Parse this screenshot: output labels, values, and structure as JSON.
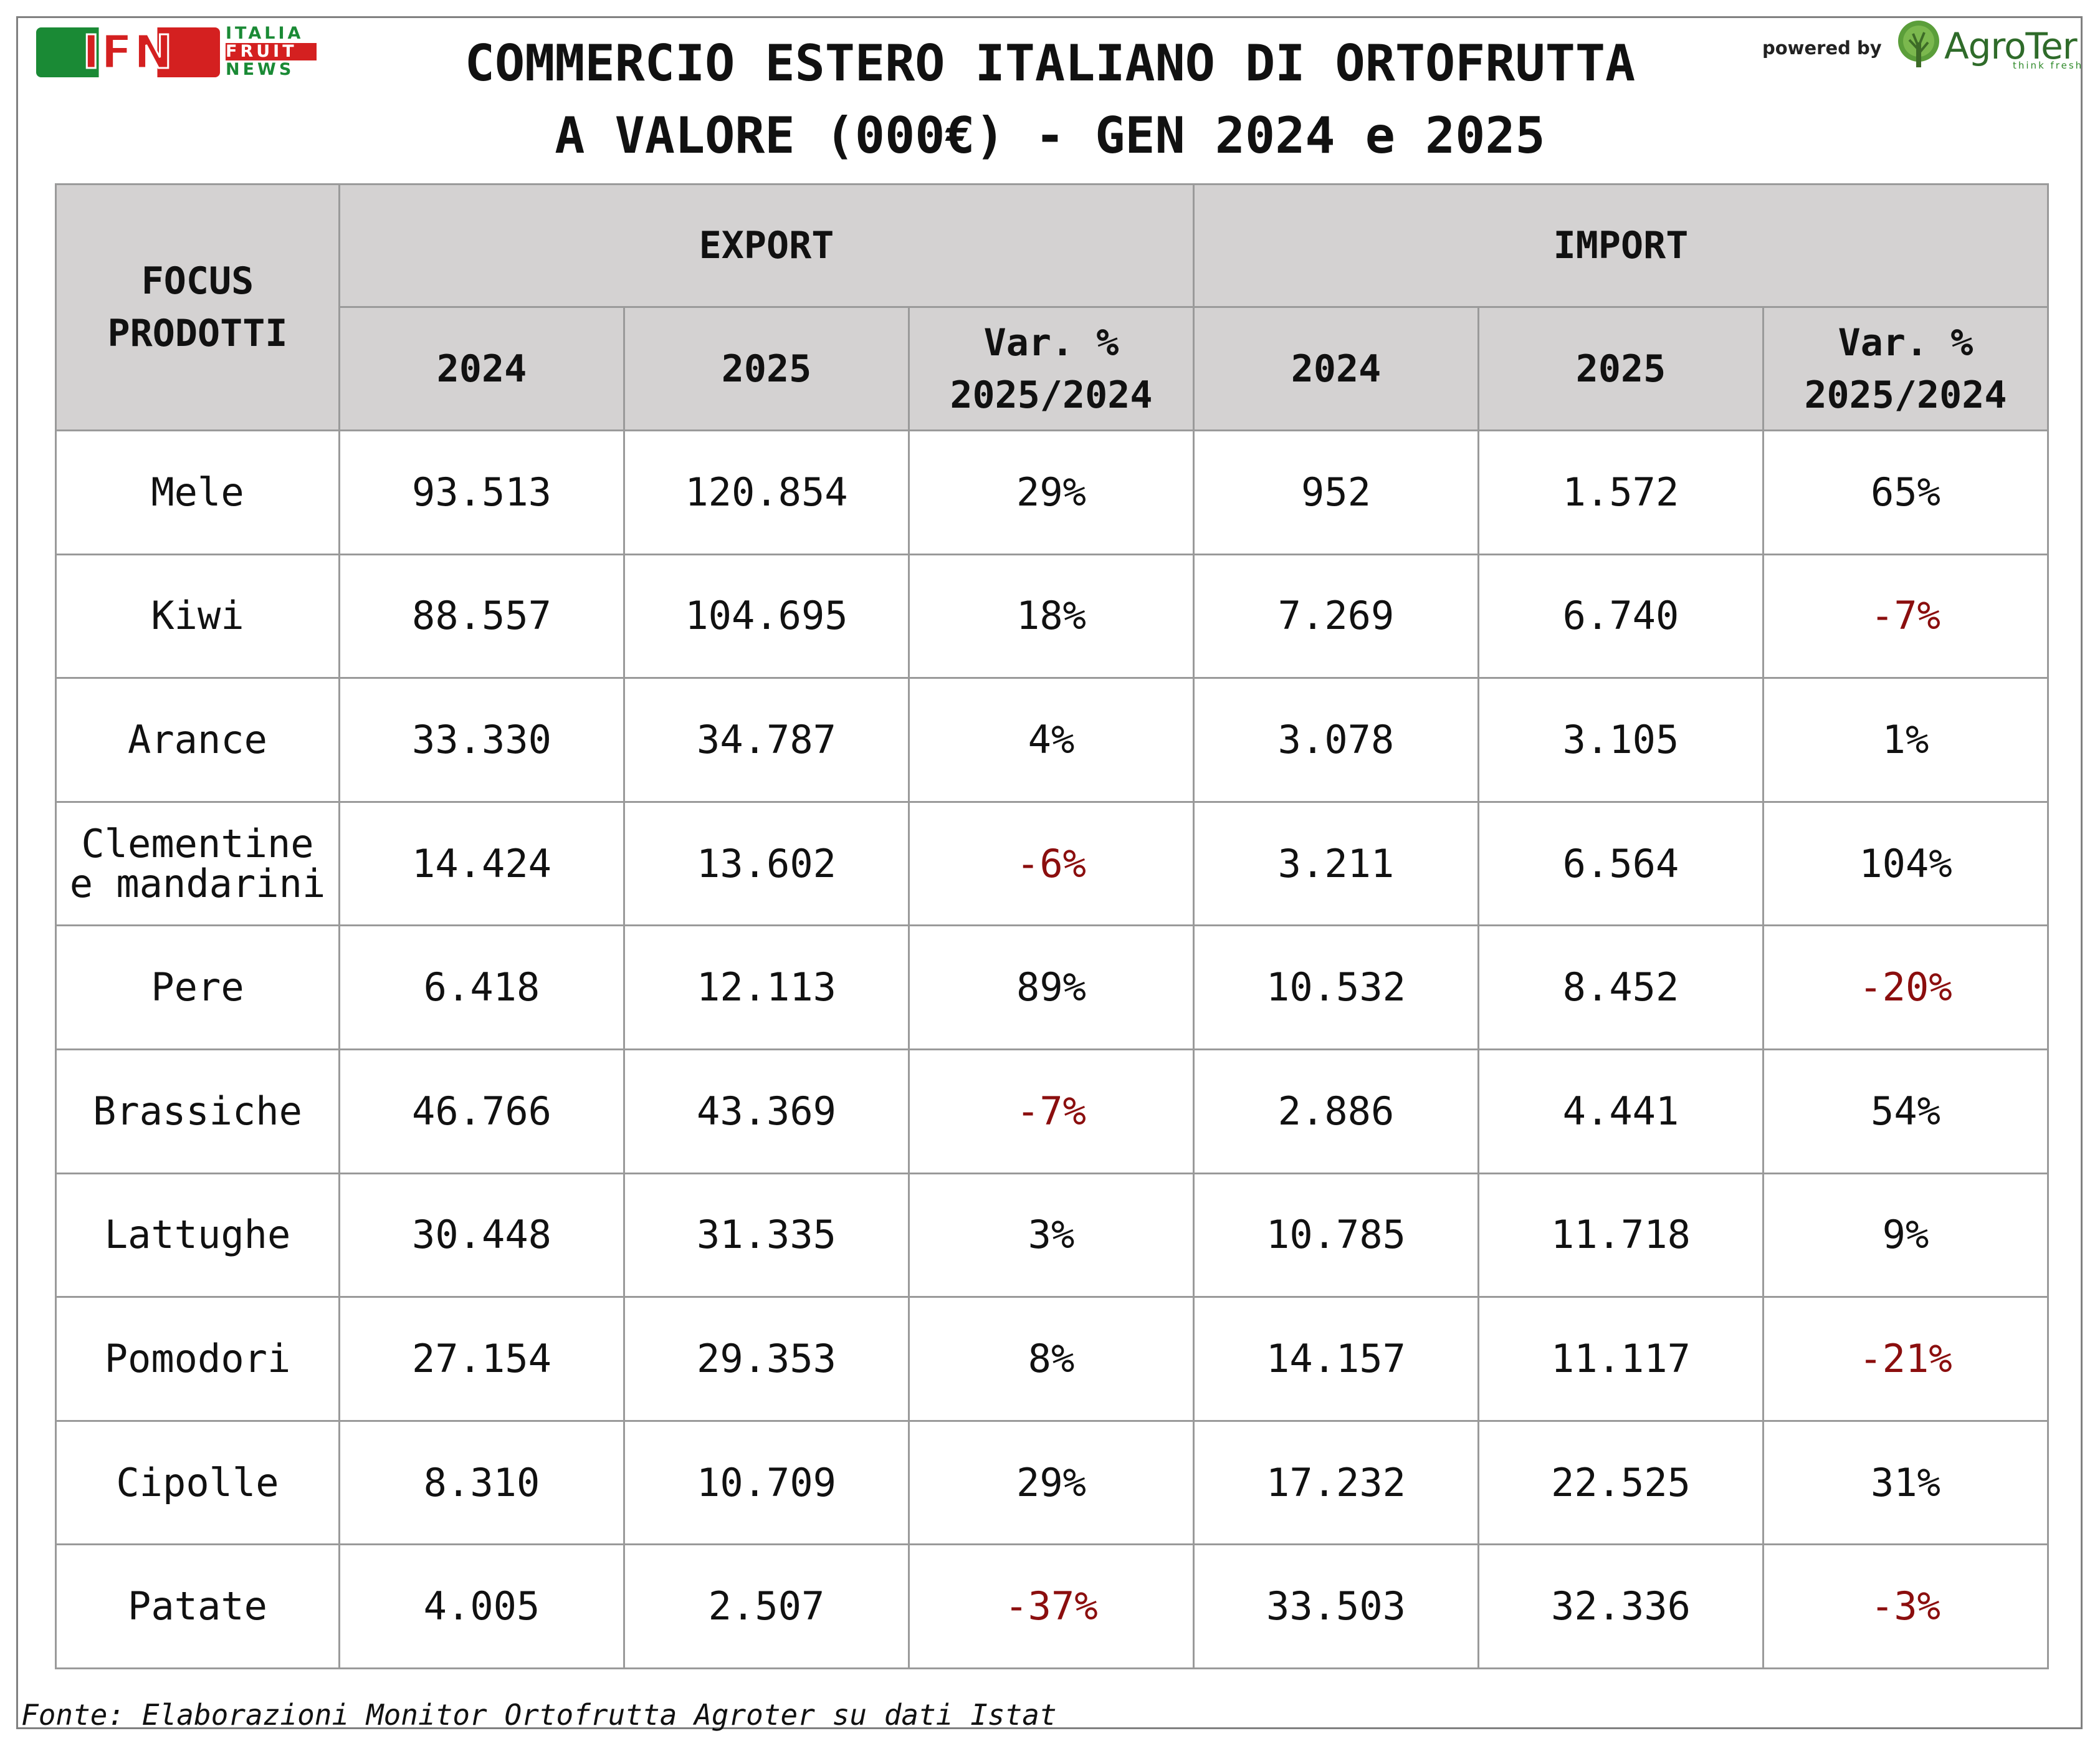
{
  "logos": {
    "ifn_text": "IFN",
    "ifn_line1": "ITALIA",
    "ifn_line2": "FRUIT",
    "ifn_line3": "NEWS",
    "powered_by": "powered by",
    "agroter_name": "AgroTer",
    "agroter_tagline": "think fresh",
    "agroter_icon": "tree-icon"
  },
  "title": {
    "line1": "COMMERCIO ESTERO ITALIANO DI ORTOFRUTTA",
    "line2": "A VALORE (000€) - GEN 2024 e 2025"
  },
  "chart_data": {
    "type": "table",
    "header": {
      "focus": "FOCUS PRODOTTI",
      "export": "EXPORT",
      "import": "IMPORT",
      "subcolumns": [
        "2024",
        "2025",
        "Var. % 2025/2024"
      ]
    },
    "rows": [
      {
        "product": "Mele",
        "export_2024": "93.513",
        "export_2025": "120.854",
        "export_var": "29%",
        "import_2024": "952",
        "import_2025": "1.572",
        "import_var": "65%"
      },
      {
        "product": "Kiwi",
        "export_2024": "88.557",
        "export_2025": "104.695",
        "export_var": "18%",
        "import_2024": "7.269",
        "import_2025": "6.740",
        "import_var": "-7%"
      },
      {
        "product": "Arance",
        "export_2024": "33.330",
        "export_2025": "34.787",
        "export_var": "4%",
        "import_2024": "3.078",
        "import_2025": "3.105",
        "import_var": "1%"
      },
      {
        "product": "Clementine e mandarini",
        "export_2024": "14.424",
        "export_2025": "13.602",
        "export_var": "-6%",
        "import_2024": "3.211",
        "import_2025": "6.564",
        "import_var": "104%"
      },
      {
        "product": "Pere",
        "export_2024": "6.418",
        "export_2025": "12.113",
        "export_var": "89%",
        "import_2024": "10.532",
        "import_2025": "8.452",
        "import_var": "-20%"
      },
      {
        "product": "Brassiche",
        "export_2024": "46.766",
        "export_2025": "43.369",
        "export_var": "-7%",
        "import_2024": "2.886",
        "import_2025": "4.441",
        "import_var": "54%"
      },
      {
        "product": "Lattughe",
        "export_2024": "30.448",
        "export_2025": "31.335",
        "export_var": "3%",
        "import_2024": "10.785",
        "import_2025": "11.718",
        "import_var": "9%"
      },
      {
        "product": "Pomodori",
        "export_2024": "27.154",
        "export_2025": "29.353",
        "export_var": "8%",
        "import_2024": "14.157",
        "import_2025": "11.117",
        "import_var": "-21%"
      },
      {
        "product": "Cipolle",
        "export_2024": "8.310",
        "export_2025": "10.709",
        "export_var": "29%",
        "import_2024": "17.232",
        "import_2025": "22.525",
        "import_var": "31%"
      },
      {
        "product": "Patate",
        "export_2024": "4.005",
        "export_2025": "2.507",
        "export_var": "-37%",
        "import_2024": "33.503",
        "import_2025": "32.336",
        "import_var": "-3%"
      }
    ]
  },
  "colors": {
    "header_bg": "#d4d2d2",
    "negative": "#8b0e0e",
    "grid": "#9a9a9a"
  },
  "footnote": "Fonte: Elaborazioni Monitor Ortofrutta Agroter su dati Istat"
}
